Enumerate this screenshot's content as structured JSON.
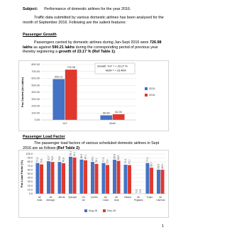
{
  "subject": {
    "label": "Subject:",
    "text": "Performance of domestic airlines for the year 2016."
  },
  "intro": "Traffic data submitted by various domestic airlines has been analysed for the month of September 2016. Following are the salient features:",
  "sections": [
    {
      "heading": "Passenger Growth",
      "text": [
        "Passengers carried by domestic airlines during Jan-Sept 2016 were ",
        "726.98 lakhs",
        " as against ",
        "590.21 lakhs",
        " during the corresponding period of previous year thereby registering a ",
        "growth of 23.17 % (Ref Table 1)",
        "."
      ]
    },
    {
      "heading": "Passenger Load Factor",
      "text": [
        "The passenger load factors of various scheduled domestic airlines in Sept 2016 are as follows ",
        "(Ref Table 2)",
        ":"
      ]
    }
  ],
  "chart_data": [
    {
      "type": "bar",
      "y_label": "Pax Carried (in Lakhs)",
      "categories": [
        "YoY",
        "MoM"
      ],
      "series": [
        {
          "name": "2015",
          "color": "#4472c4",
          "values": [
            590.21,
            66.66
          ]
        },
        {
          "name": "2016",
          "color": "#e0382d",
          "values": [
            726.98,
            82.3
          ],
          "value_labels": [
            "726.98",
            "82.30"
          ]
        }
      ],
      "ylim": [
        0,
        800
      ],
      "yticks": [
        {
          "value": 0,
          "label": "0.00"
        },
        {
          "value": 100,
          "label": "100.00"
        },
        {
          "value": 200,
          "label": "200.00"
        },
        {
          "value": 300,
          "label": "300.00"
        },
        {
          "value": 400,
          "label": "400.00"
        },
        {
          "value": 500,
          "label": "500.00"
        },
        {
          "value": 600,
          "label": "600.00"
        },
        {
          "value": 700,
          "label": "700.00"
        },
        {
          "value": 800,
          "label": "800.00"
        }
      ],
      "grid": true,
      "legend": "right",
      "annotations": [
        "Growth: YoY = + 23.17 %",
        "MoM = + 23.46%"
      ]
    },
    {
      "type": "bar",
      "y_label": "Pax Load Factor (%)",
      "categories": [
        "Air India",
        "Jet Airways",
        "JetLite",
        "Spicejet",
        "Go Air",
        "IndiGo",
        "Air Costa",
        "Air Asia",
        "Vistara",
        "Air Pegasus",
        "Trujet",
        "Air Carnival"
      ],
      "series": [
        {
          "name": "Aug-16",
          "color": "#4472c4",
          "values": [
            77.3,
            81.7,
            79.9,
            93.1,
            86,
            80.1,
            77.3,
            85.6,
            73,
            0,
            77.3,
            60.5
          ],
          "value_labels": [
            "77.3",
            "81.7",
            "79.9",
            "93.1",
            "86.0",
            "80.1",
            "77.3",
            "85.6",
            "73.0",
            "0.0",
            "77.3",
            "60.5"
          ]
        },
        {
          "name": "Sep-16",
          "color": "#e0382d",
          "values": [
            73.9,
            79.9,
            76.8,
            91.1,
            84.1,
            75.1,
            72.4,
            82.8,
            72.1,
            0,
            65.7,
            60.4
          ],
          "value_labels": [
            "73.9",
            "79.9",
            "76.8",
            "91.1",
            "84.1",
            "75.1",
            "72.4",
            "82.8",
            "72.1",
            "0.0",
            "65.7",
            "60.4"
          ]
        }
      ],
      "ylim": [
        0,
        100
      ],
      "yticks": [
        {
          "value": 0,
          "label": "0.0"
        },
        {
          "value": 10,
          "label": "10.0"
        },
        {
          "value": 20,
          "label": "20.0"
        },
        {
          "value": 30,
          "label": "30.0"
        },
        {
          "value": 40,
          "label": "40.0"
        },
        {
          "value": 50,
          "label": "50.0"
        },
        {
          "value": 60,
          "label": "60.0"
        },
        {
          "value": 70,
          "label": "70.0"
        },
        {
          "value": 80,
          "label": "80.0"
        },
        {
          "value": 90,
          "label": "90.0"
        },
        {
          "value": 100,
          "label": "100.0"
        }
      ],
      "grid": true,
      "legend": "bottom"
    }
  ],
  "page_number": "1"
}
